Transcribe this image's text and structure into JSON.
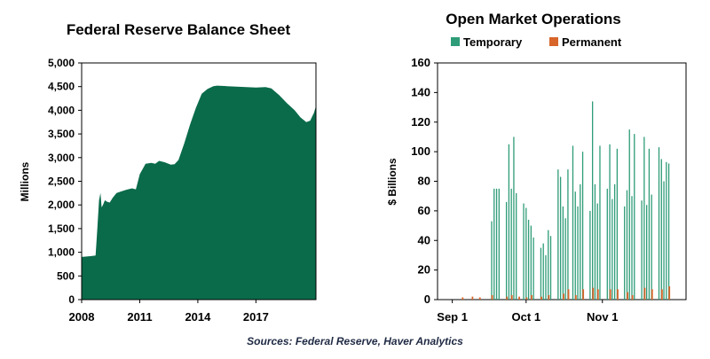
{
  "footer": {
    "sources": "Sources: Federal Reserve,  Haver Analytics"
  },
  "colors": {
    "balance_fill": "#0a6b4a",
    "temporary": "#2e9c78",
    "permanent": "#d8652a",
    "axis": "#000000"
  },
  "chart_data": [
    {
      "type": "area",
      "title": "Federal Reserve Balance Sheet",
      "xlabel": "",
      "ylabel": "Millions",
      "xlim": [
        2008,
        2020.1
      ],
      "ylim": [
        0,
        5000
      ],
      "x_ticks": [
        2008,
        2011,
        2014,
        2017
      ],
      "y_ticks": [
        0,
        500,
        1000,
        1500,
        2000,
        2500,
        3000,
        3500,
        4000,
        4500,
        5000
      ],
      "y_tick_labels": [
        "0",
        "500",
        "1,000",
        "1,500",
        "2,000",
        "2,500",
        "3,000",
        "3,500",
        "4,000",
        "4,500",
        "5,000"
      ],
      "x": [
        2008.0,
        2008.5,
        2008.72,
        2008.8,
        2008.9,
        2008.97,
        2009.03,
        2009.1,
        2009.2,
        2009.3,
        2009.45,
        2009.6,
        2009.8,
        2010.0,
        2010.3,
        2010.6,
        2010.8,
        2011.0,
        2011.3,
        2011.6,
        2011.8,
        2012.0,
        2012.3,
        2012.6,
        2012.8,
        2013.0,
        2013.3,
        2013.6,
        2013.9,
        2014.2,
        2014.5,
        2014.8,
        2015.0,
        2015.5,
        2016.0,
        2016.5,
        2017.0,
        2017.5,
        2017.8,
        2018.2,
        2018.6,
        2019.0,
        2019.3,
        2019.6,
        2019.8,
        2020.0,
        2020.1
      ],
      "values": [
        900,
        920,
        930,
        1450,
        2100,
        2250,
        1950,
        2000,
        2100,
        2070,
        2050,
        2150,
        2250,
        2280,
        2320,
        2350,
        2330,
        2650,
        2870,
        2890,
        2870,
        2930,
        2900,
        2850,
        2860,
        2950,
        3300,
        3700,
        4050,
        4350,
        4450,
        4510,
        4520,
        4510,
        4500,
        4490,
        4480,
        4490,
        4460,
        4320,
        4150,
        4000,
        3850,
        3750,
        3780,
        3950,
        4090
      ]
    },
    {
      "type": "bar",
      "title": "Open Market Operations",
      "xlabel": "",
      "ylabel": "$ Billions",
      "ylim": [
        0,
        160
      ],
      "y_ticks": [
        0,
        20,
        40,
        60,
        80,
        100,
        120,
        140,
        160
      ],
      "x_ticks": [
        "Sep 1",
        "Oct 1",
        "Nov 1"
      ],
      "x_tick_day": [
        0,
        30,
        61
      ],
      "xlim_days": [
        -6,
        95
      ],
      "legend_position": "top",
      "series": [
        {
          "name": "Temporary",
          "color": "#2e9c78",
          "days": [
            16,
            17,
            18,
            19,
            22,
            23,
            24,
            25,
            26,
            29,
            30,
            31,
            32,
            33,
            36,
            37,
            38,
            39,
            40,
            43,
            44,
            45,
            46,
            47,
            49,
            50,
            51,
            52,
            53,
            56,
            57,
            58,
            59,
            60,
            63,
            64,
            65,
            66,
            67,
            70,
            71,
            72,
            73,
            74,
            77,
            78,
            79,
            80,
            81,
            84,
            85,
            86,
            87,
            88
          ],
          "values": [
            53,
            75,
            75,
            75,
            66,
            105,
            75,
            110,
            72,
            65,
            62,
            54,
            50,
            42,
            35,
            38,
            30,
            47,
            43,
            88,
            83,
            63,
            55,
            88,
            104,
            73,
            63,
            78,
            100,
            60,
            134,
            78,
            65,
            104,
            75,
            105,
            68,
            78,
            102,
            63,
            74,
            115,
            70,
            112,
            67,
            110,
            64,
            102,
            71,
            103,
            95,
            80,
            93,
            92
          ]
        },
        {
          "name": "Permanent",
          "color": "#d8652a",
          "days": [
            4,
            8,
            11,
            16,
            22,
            24,
            27,
            30,
            32,
            36,
            39,
            45,
            47,
            50,
            53,
            57,
            59,
            64,
            67,
            71,
            73,
            78,
            81,
            85,
            88
          ],
          "values": [
            1.5,
            2,
            1.5,
            3,
            2,
            3,
            2,
            1.5,
            3,
            2,
            3,
            4,
            7,
            3,
            7,
            8,
            7,
            7,
            7,
            5,
            3,
            8,
            7,
            7,
            9
          ]
        }
      ]
    }
  ]
}
